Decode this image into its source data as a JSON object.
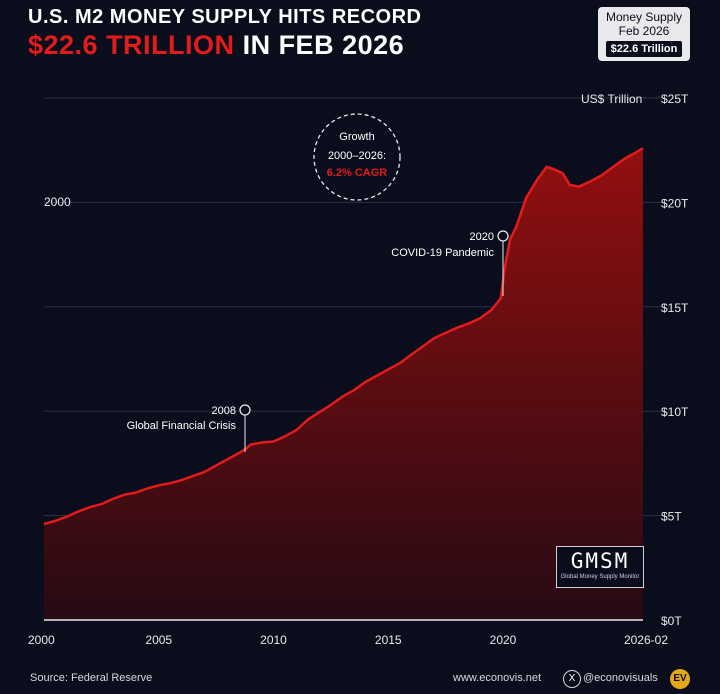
{
  "header": {
    "title_line1": "U.S. M2 MONEY SUPPLY HITS RECORD",
    "title_value": "$22.6 TRILLION",
    "title_suffix": "IN FEB 2026"
  },
  "badge": {
    "line1": "Money Supply",
    "line2": "Feb 2026",
    "value": "$22.6 Trillion"
  },
  "growth_callout": {
    "line1": "Growth",
    "line2": "2000–2026:",
    "line3": "6.2% CAGR"
  },
  "annotations": {
    "gfc_year": "2008",
    "gfc_label": "Global Financial Crisis",
    "covid_year": "2020",
    "covid_label": "COVID-19 Pandemic"
  },
  "logo": {
    "big": "GMSM",
    "small": "Global Money Supply Monitor"
  },
  "footer": {
    "source": "Source: Federal Reserve",
    "site": "www.econovis.net",
    "handle": "@econovisuals",
    "ev": "EV"
  },
  "colors": {
    "background": "#0a0e1c",
    "line": "#e31b1b",
    "accent": "#e31b1b",
    "grid": "#2a2f44"
  },
  "chart_data": {
    "type": "area",
    "ylabel": "US$ Trillion",
    "xlim": [
      2000,
      2026.1
    ],
    "ylim": [
      0,
      25
    ],
    "x_ticks": [
      2000,
      2005,
      2010,
      2015,
      2020,
      2026.1
    ],
    "x_tick_labels": [
      "2000",
      "2005",
      "2010",
      "2015",
      "2020",
      "2026-02"
    ],
    "y_ticks": [
      0,
      5,
      10,
      15,
      20,
      25
    ],
    "y_tick_labels": [
      "$0T",
      "$5T",
      "$10T",
      "$15T",
      "$20T",
      "$25T"
    ],
    "grid_lines_y": [
      5,
      10,
      15,
      20,
      25
    ],
    "side_year_label": "2000",
    "series": [
      {
        "x": [
          2000,
          2000.5,
          2001,
          2001.5,
          2002,
          2002.5,
          2003,
          2003.5,
          2004,
          2004.5,
          2005,
          2005.5,
          2006,
          2006.5,
          2007,
          2007.5,
          2008,
          2008.5,
          2008.8,
          2009,
          2009.5,
          2010,
          2010.5,
          2011,
          2011.5,
          2012,
          2012.5,
          2013,
          2013.5,
          2014,
          2014.5,
          2015,
          2015.5,
          2016,
          2016.5,
          2017,
          2017.5,
          2018,
          2018.5,
          2019,
          2019.5,
          2019.9,
          2020.1,
          2020.3,
          2020.6,
          2021,
          2021.5,
          2021.9,
          2022.2,
          2022.6,
          2022.9,
          2023.3,
          2023.8,
          2024.3,
          2024.8,
          2025.3,
          2025.8,
          2026.1
        ],
        "values": [
          4.6,
          4.75,
          4.95,
          5.2,
          5.4,
          5.55,
          5.8,
          6.0,
          6.1,
          6.3,
          6.45,
          6.55,
          6.7,
          6.9,
          7.1,
          7.4,
          7.7,
          8.0,
          8.2,
          8.4,
          8.5,
          8.55,
          8.8,
          9.1,
          9.6,
          9.95,
          10.3,
          10.7,
          11.0,
          11.4,
          11.7,
          12.0,
          12.3,
          12.7,
          13.1,
          13.5,
          13.75,
          14.0,
          14.2,
          14.45,
          14.85,
          15.4,
          17.0,
          18.2,
          18.9,
          20.2,
          21.1,
          21.7,
          21.6,
          21.4,
          20.85,
          20.75,
          21.0,
          21.3,
          21.7,
          22.1,
          22.4,
          22.6
        ]
      }
    ],
    "markers": [
      {
        "x": 2008.8,
        "y": 8.2,
        "label": "2008"
      },
      {
        "x": 2020.0,
        "y": 15.4,
        "label": "2020"
      }
    ]
  }
}
